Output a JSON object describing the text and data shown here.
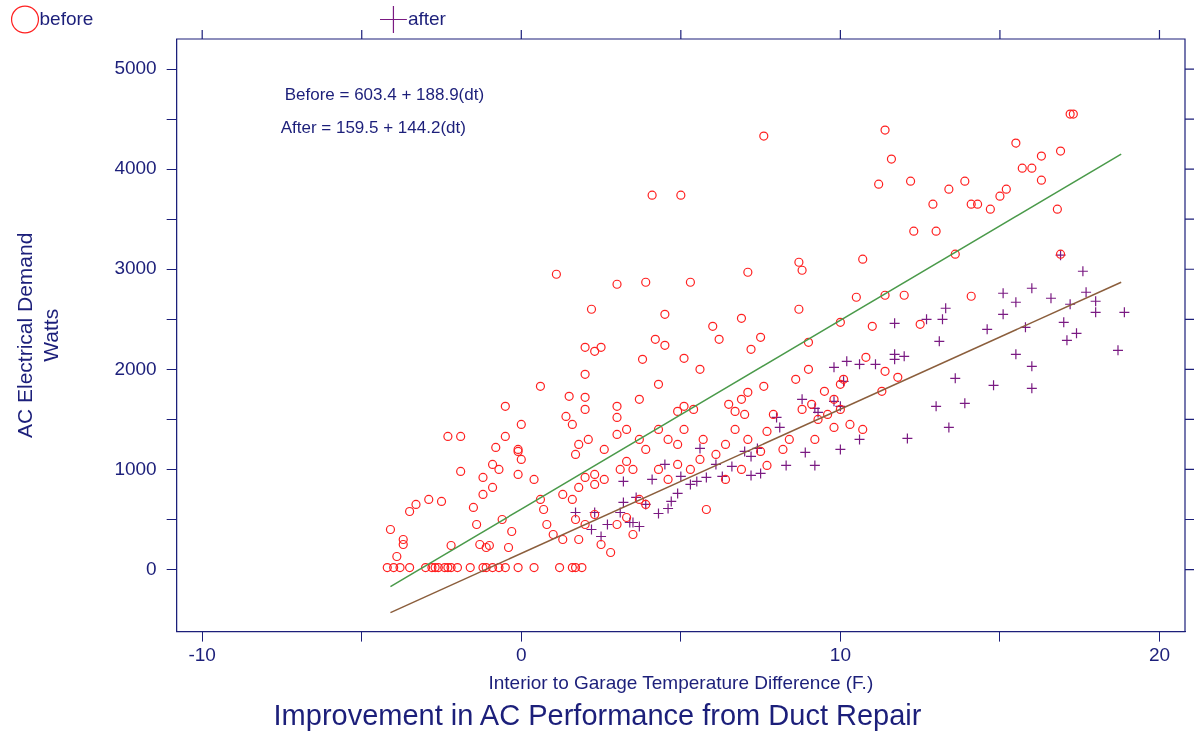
{
  "chart_data": {
    "type": "scatter",
    "title": "Improvement in AC Performance from Duct Repair",
    "xlabel": "Interior to Garage Temperature Difference (F.)",
    "ylabel": "AC Electrical Demand\nWatts",
    "annotations": [
      "Before = 603.4 + 188.9(dt)",
      "After = 159.5 + 144.2(dt)"
    ],
    "xlim": [
      -10.8,
      20.8
    ],
    "xticks": [
      -10,
      {
        "value": -5,
        "label": null
      },
      0,
      {
        "value": 5,
        "label": null
      },
      10,
      {
        "value": 15,
        "label": null
      },
      20
    ],
    "ylim": [
      -620,
      5300
    ],
    "yticks": [
      0,
      {
        "value": 500,
        "label": null
      },
      1000,
      {
        "value": 1500,
        "label": null
      },
      2000,
      {
        "value": 2500,
        "label": null
      },
      3000,
      {
        "value": 3500,
        "label": null
      },
      4000,
      {
        "value": 4500,
        "label": null
      },
      5000
    ],
    "grid": false,
    "legend": "top",
    "series": [
      {
        "name": "before",
        "color": "#ff2020",
        "marker": "circle",
        "x": [
          17.2,
          17.3,
          11.4,
          7.6,
          15.5,
          11.6,
          16.3,
          16.0,
          15.7,
          16.9,
          11.2,
          12.2,
          13.9,
          13.4,
          16.3,
          4.1,
          5.0,
          12.9,
          14.1,
          14.3,
          14.7,
          15.0,
          15.2,
          16.8,
          12.3,
          13.0,
          13.6,
          16.9,
          10.7,
          1.1,
          7.1,
          8.8,
          8.7,
          3.0,
          3.9,
          5.3,
          11.4,
          12.0,
          14.1,
          2.2,
          8.7,
          6.9,
          4.5,
          12.5,
          10.5,
          10.0,
          6.0,
          4.2,
          7.5,
          11.0,
          2.0,
          2.5,
          2.3,
          4.5,
          7.2,
          9.0,
          3.8,
          5.1,
          6.2,
          2.0,
          5.6,
          3.0,
          3.7,
          4.3,
          5.1,
          3.0,
          0.6,
          1.5,
          2.0,
          2.0,
          1.6,
          1.4,
          0.0,
          -0.8,
          7.6,
          8.6,
          7.1,
          7.9,
          10.0,
          10.1,
          10.8,
          11.4,
          11.8,
          10.3,
          10.7,
          11.3,
          -0.5,
          -1.9,
          -2.3,
          -0.5,
          -0.9,
          -0.1,
          0.0,
          -0.1,
          -1.9,
          -3.5,
          -3.3,
          -2.9,
          -3.7,
          -3.9,
          -4.1,
          -2.5,
          -3.7,
          -1.5,
          -1.2,
          -1.2,
          -0.9,
          -0.7,
          -0.1,
          -0.6,
          -0.3,
          -0.4,
          -1.4,
          -1.3,
          -1.1,
          -1.0,
          -2.2,
          -4.2,
          -4.0,
          -3.8,
          -3.5,
          -3.0,
          -2.8,
          -2.7,
          -2.6,
          -2.4,
          -2.3,
          -2.2,
          -2.0,
          -1.6,
          -1.2,
          -1.1,
          -0.9,
          -0.7,
          -0.5,
          -0.1,
          0.4,
          1.2,
          1.6,
          1.7,
          1.9,
          0.6,
          0.7,
          0.4,
          1.3,
          1.6,
          1.8,
          2.0,
          2.3,
          2.3,
          2.6,
          3.1,
          3.3,
          3.5,
          0.8,
          1.0,
          1.3,
          1.7,
          2.0,
          1.8,
          2.3,
          2.5,
          2.8,
          3.0,
          3.3,
          3.5,
          3.7,
          3.9,
          1.7,
          1.8,
          2.1,
          2.6,
          3.0,
          3.3,
          3.7,
          3.9,
          4.3,
          4.6,
          4.9,
          5.1,
          4.3,
          4.6,
          4.9,
          5.3,
          5.6,
          5.7,
          6.1,
          6.4,
          6.7,
          7.0,
          5.8,
          5.4,
          4.9,
          6.5,
          6.7,
          6.9,
          6.4,
          6.9,
          7.1,
          7.5,
          7.7,
          8.2,
          8.4,
          8.8,
          9.3,
          9.5,
          9.8,
          10.0,
          9.2,
          7.7,
          9.0,
          9.6,
          9.8,
          9.1
        ],
        "values": [
          4550,
          4550,
          4390,
          4330,
          4260,
          4100,
          4130,
          4010,
          4010,
          4180,
          3850,
          3880,
          3880,
          3800,
          3890,
          3740,
          3740,
          3650,
          3650,
          3650,
          3600,
          3730,
          3800,
          3600,
          3380,
          3380,
          3150,
          3150,
          3100,
          2950,
          2970,
          2990,
          3070,
          2850,
          2870,
          2870,
          2740,
          2740,
          2730,
          2600,
          2600,
          2510,
          2550,
          2450,
          2720,
          2470,
          2430,
          2300,
          2320,
          2430,
          2220,
          2220,
          2180,
          2240,
          2200,
          2270,
          2100,
          2110,
          2300,
          1950,
          2000,
          1630,
          1700,
          1850,
          1630,
          1520,
          1830,
          1730,
          1720,
          1600,
          1450,
          1530,
          1450,
          1220,
          1830,
          1900,
          1770,
          1550,
          1600,
          1900,
          2120,
          1980,
          1920,
          1450,
          1400,
          1780,
          1630,
          1330,
          1330,
          1330,
          1050,
          1200,
          1100,
          950,
          980,
          580,
          650,
          700,
          300,
          130,
          400,
          680,
          250,
          620,
          750,
          920,
          820,
          1000,
          1180,
          500,
          380,
          220,
          450,
          250,
          220,
          240,
          240,
          20,
          20,
          20,
          20,
          20,
          20,
          20,
          20,
          20,
          20,
          20,
          20,
          20,
          20,
          20,
          20,
          20,
          20,
          20,
          20,
          20,
          20,
          20,
          20,
          700,
          600,
          900,
          750,
          700,
          820,
          920,
          850,
          950,
          900,
          1000,
          1080,
          1000,
          450,
          350,
          300,
          500,
          450,
          300,
          550,
          250,
          170,
          450,
          520,
          350,
          700,
          650,
          1150,
          1250,
          1300,
          1200,
          1350,
          1400,
          1300,
          1200,
          1400,
          1300,
          1250,
          1400,
          1000,
          900,
          1050,
          1000,
          1100,
          1300,
          1150,
          1250,
          1400,
          1550,
          600,
          1600,
          1580,
          1650,
          1580,
          1700,
          900,
          1000,
          1300,
          1180,
          1040,
          1200,
          1300,
          1600,
          1500,
          1780,
          1700,
          1850,
          1300,
          1380,
          2000,
          1550,
          1420,
          1650
        ]
      },
      {
        "name": "after",
        "color": "#7a1a82",
        "marker": "cross",
        "x": [
          16.9,
          17.6,
          17.7,
          18.0,
          18.9,
          18.0,
          17.2,
          16.6,
          16.0,
          15.5,
          15.1,
          15.1,
          14.6,
          15.8,
          17.0,
          17.1,
          17.4,
          18.7,
          15.5,
          13.3,
          13.2,
          13.1,
          12.7,
          11.7,
          11.7,
          12.0,
          16.0,
          13.6,
          14.8,
          16.0,
          13.0,
          13.9,
          13.4,
          12.1,
          11.7,
          9.8,
          10.2,
          10.6,
          11.1,
          10.1,
          8.8,
          9.2,
          9.3,
          9.8,
          10.0,
          8.0,
          8.1,
          10.6,
          10.0,
          9.2,
          8.9,
          8.3,
          7.5,
          7.2,
          7.4,
          7.0,
          7.2,
          6.6,
          6.3,
          6.1,
          5.8,
          5.6,
          5.5,
          5.3,
          5.0,
          4.9,
          4.7,
          4.6,
          4.3,
          3.9,
          3.6,
          3.7,
          3.5,
          4.1,
          4.5,
          3.2,
          3.2,
          3.1,
          3.4,
          2.2,
          2.5,
          1.7,
          2.3,
          2.7
        ],
        "values": [
          3140,
          2980,
          2770,
          2680,
          2570,
          2570,
          2650,
          2710,
          2810,
          2670,
          2760,
          2550,
          2400,
          2420,
          2470,
          2290,
          2360,
          2190,
          2150,
          2610,
          2500,
          2280,
          2500,
          2460,
          2150,
          2130,
          2030,
          1910,
          1840,
          1810,
          1630,
          1660,
          1420,
          1310,
          2100,
          2020,
          2080,
          2050,
          2050,
          1880,
          1700,
          1610,
          1570,
          1680,
          1630,
          1520,
          1420,
          1300,
          1200,
          1040,
          1170,
          1040,
          960,
          940,
          1210,
          1180,
          1130,
          1030,
          930,
          1050,
          920,
          1210,
          880,
          850,
          930,
          760,
          680,
          610,
          560,
          650,
          720,
          430,
          470,
          900,
          1050,
          880,
          670,
          570,
          470,
          400,
          330,
          570,
          570,
          450
        ]
      },
      {
        "type": "line",
        "color": "#4a9a4a",
        "marker": "none",
        "x": [
          -4.1,
          18.8
        ],
        "values": [
          -170,
          4150
        ]
      },
      {
        "type": "line",
        "color": "#8b5e3c",
        "marker": "none",
        "x": [
          -4.1,
          18.8
        ],
        "values": [
          -430,
          2870
        ]
      }
    ]
  }
}
